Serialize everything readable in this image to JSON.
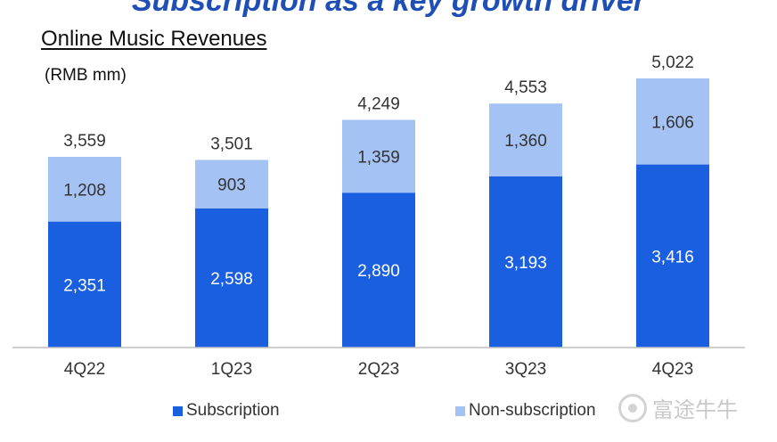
{
  "banner": "Subscription as a key growth driver",
  "chart_data": {
    "type": "bar",
    "stacked": true,
    "title": "Online Music Revenues",
    "unit_label": "(RMB mm)",
    "categories": [
      "4Q22",
      "1Q23",
      "2Q23",
      "3Q23",
      "4Q23"
    ],
    "series": [
      {
        "name": "Subscription",
        "values": [
          2351,
          2598,
          2890,
          3193,
          3416
        ],
        "labels": [
          "2,351",
          "2,598",
          "2,890",
          "3,193",
          "3,416"
        ],
        "color": "#1a5fe0"
      },
      {
        "name": "Non-subscription",
        "values": [
          1208,
          903,
          1359,
          1360,
          1606
        ],
        "labels": [
          "1,208",
          "903",
          "1,359",
          "1,360",
          "1,606"
        ],
        "color": "#a4c2f4"
      }
    ],
    "totals": [
      3559,
      3501,
      4249,
      4553,
      5022
    ],
    "total_labels": [
      "3,559",
      "3,501",
      "4,249",
      "4,553",
      "5,022"
    ],
    "ylim": [
      0,
      5022
    ],
    "grid": false,
    "legend_position": "bottom"
  },
  "watermark": "富途牛牛"
}
